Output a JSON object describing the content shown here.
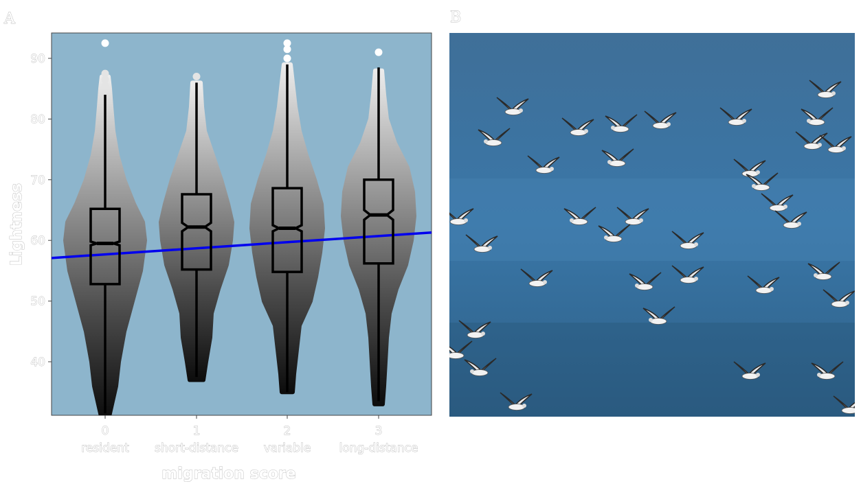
{
  "panel_labels": {
    "a": "A",
    "b": "B"
  },
  "chart_data": {
    "type": "violin-beeswarm-boxplot",
    "xlabel": "migration score",
    "ylabel": "Lightness",
    "ylim": [
      31,
      95
    ],
    "yticks": [
      40,
      50,
      60,
      70,
      80,
      90
    ],
    "grid": false,
    "background_color": "#8db5cc",
    "categories": [
      {
        "score": "0",
        "label": "resident",
        "box": {
          "min": 31.5,
          "q1": 52.8,
          "median": 59.5,
          "q3": 65.2,
          "max": 84.0,
          "notch_low": 59.2,
          "notch_high": 59.8
        },
        "outliers": [
          85.5,
          86.5,
          87.5,
          92.5
        ],
        "violin": [
          [
            31,
            6
          ],
          [
            33,
            10
          ],
          [
            36,
            16
          ],
          [
            40,
            20
          ],
          [
            45,
            28
          ],
          [
            50,
            40
          ],
          [
            55,
            52
          ],
          [
            60,
            58
          ],
          [
            63,
            55
          ],
          [
            66,
            42
          ],
          [
            70,
            28
          ],
          [
            74,
            18
          ],
          [
            78,
            12
          ],
          [
            82,
            9
          ],
          [
            85,
            7
          ],
          [
            87,
            5
          ]
        ]
      },
      {
        "score": "1",
        "label": "short-distance",
        "box": {
          "min": 37.5,
          "q1": 55.2,
          "median": 62.2,
          "q3": 67.6,
          "max": 86.0,
          "notch_low": 61.5,
          "notch_high": 62.9
        },
        "outliers": [
          87.0
        ],
        "violin": [
          [
            37,
            10
          ],
          [
            40,
            14
          ],
          [
            44,
            20
          ],
          [
            48,
            22
          ],
          [
            52,
            32
          ],
          [
            56,
            44
          ],
          [
            60,
            50
          ],
          [
            63,
            52
          ],
          [
            66,
            46
          ],
          [
            70,
            36
          ],
          [
            74,
            24
          ],
          [
            78,
            12
          ],
          [
            82,
            8
          ],
          [
            86,
            6
          ]
        ]
      },
      {
        "score": "2",
        "label": "variable",
        "box": {
          "min": 35.0,
          "q1": 54.8,
          "median": 62.0,
          "q3": 68.6,
          "max": 89.0,
          "notch_low": 61.5,
          "notch_high": 62.5
        },
        "outliers": [
          90.0,
          91.5,
          92.5
        ],
        "violin": [
          [
            35,
            8
          ],
          [
            38,
            10
          ],
          [
            42,
            14
          ],
          [
            46,
            18
          ],
          [
            50,
            34
          ],
          [
            54,
            42
          ],
          [
            58,
            48
          ],
          [
            62,
            52
          ],
          [
            66,
            50
          ],
          [
            70,
            40
          ],
          [
            74,
            28
          ],
          [
            78,
            18
          ],
          [
            82,
            12
          ],
          [
            86,
            8
          ],
          [
            89,
            5
          ]
        ]
      },
      {
        "score": "3",
        "label": "long-distance",
        "box": {
          "min": 33.5,
          "q1": 56.2,
          "median": 64.2,
          "q3": 70.0,
          "max": 88.5,
          "notch_low": 63.4,
          "notch_high": 65.0
        },
        "outliers": [
          91.0
        ],
        "violin": [
          [
            33,
            6
          ],
          [
            36,
            8
          ],
          [
            40,
            10
          ],
          [
            44,
            12
          ],
          [
            48,
            16
          ],
          [
            52,
            26
          ],
          [
            56,
            40
          ],
          [
            60,
            48
          ],
          [
            64,
            52
          ],
          [
            68,
            50
          ],
          [
            72,
            42
          ],
          [
            76,
            24
          ],
          [
            80,
            12
          ],
          [
            84,
            8
          ],
          [
            88,
            5
          ]
        ]
      }
    ],
    "trend_line": {
      "color": "#0000ee",
      "y_at_left_edge": 57.1,
      "y_at_right_edge": 61.3
    }
  },
  "photo": {
    "subject": "flock of sanderlings flying over water",
    "colors": {
      "water_top": "#3f6f98",
      "water_mid": "#3a77a8",
      "water_bottom": "#2d5f86"
    }
  }
}
